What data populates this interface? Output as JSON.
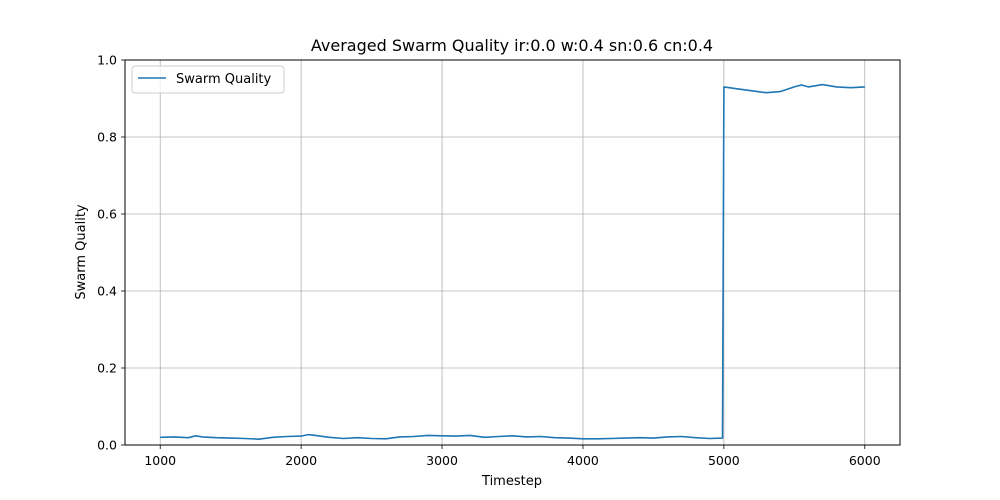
{
  "chart_data": {
    "type": "line",
    "title": "Averaged Swarm Quality ir:0.0 w:0.4 sn:0.6 cn:0.4",
    "xlabel": "Timestep",
    "ylabel": "Swarm Quality",
    "xlim": [
      750,
      6250
    ],
    "ylim": [
      0.0,
      1.0
    ],
    "xticks": [
      1000,
      2000,
      3000,
      4000,
      5000,
      6000
    ],
    "xtick_labels": [
      "1000",
      "2000",
      "3000",
      "4000",
      "5000",
      "6000"
    ],
    "yticks": [
      0.0,
      0.2,
      0.4,
      0.6,
      0.8,
      1.0
    ],
    "ytick_labels": [
      "0.0",
      "0.2",
      "0.4",
      "0.6",
      "0.8",
      "1.0"
    ],
    "grid": true,
    "legend_position": "top-left",
    "series": [
      {
        "name": "Swarm Quality",
        "color": "#1f77b4",
        "x": [
          1000,
          1100,
          1200,
          1250,
          1300,
          1400,
          1500,
          1600,
          1700,
          1800,
          1900,
          2000,
          2050,
          2100,
          2200,
          2300,
          2400,
          2500,
          2600,
          2700,
          2800,
          2900,
          3000,
          3100,
          3200,
          3300,
          3400,
          3500,
          3600,
          3700,
          3800,
          3900,
          4000,
          4100,
          4200,
          4300,
          4400,
          4500,
          4600,
          4700,
          4800,
          4900,
          4990,
          5000,
          5100,
          5200,
          5300,
          5400,
          5500,
          5550,
          5600,
          5700,
          5800,
          5900,
          6000
        ],
        "y": [
          0.02,
          0.021,
          0.019,
          0.024,
          0.021,
          0.019,
          0.018,
          0.017,
          0.015,
          0.02,
          0.022,
          0.023,
          0.027,
          0.025,
          0.02,
          0.017,
          0.019,
          0.017,
          0.016,
          0.021,
          0.022,
          0.025,
          0.024,
          0.023,
          0.025,
          0.02,
          0.022,
          0.024,
          0.021,
          0.022,
          0.019,
          0.018,
          0.016,
          0.016,
          0.017,
          0.018,
          0.019,
          0.018,
          0.021,
          0.022,
          0.019,
          0.017,
          0.018,
          0.93,
          0.925,
          0.92,
          0.915,
          0.918,
          0.93,
          0.935,
          0.93,
          0.936,
          0.93,
          0.928,
          0.93
        ]
      }
    ]
  }
}
